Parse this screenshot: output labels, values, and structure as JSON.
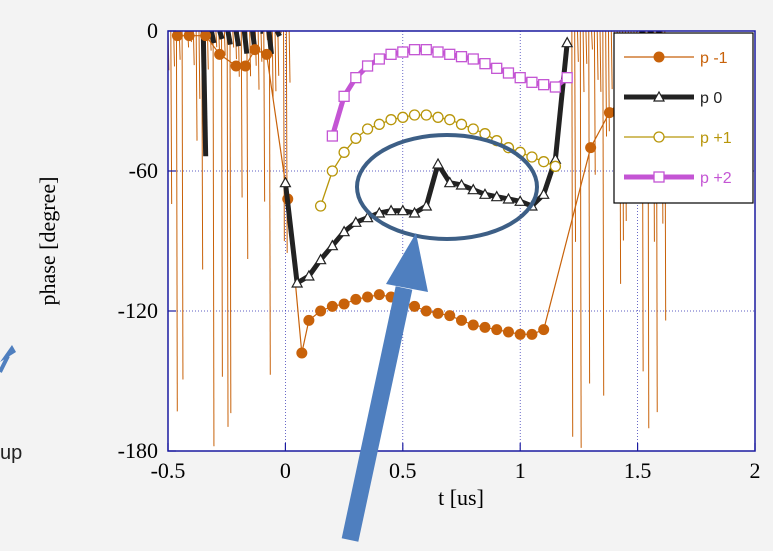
{
  "page": {
    "side_text": "up"
  },
  "chart_data": {
    "type": "line",
    "title": "",
    "xlabel": "t [us]",
    "ylabel": "phase [degree]",
    "xlim": [
      -0.5,
      2
    ],
    "ylim": [
      -180,
      0
    ],
    "xticks": [
      -0.5,
      0,
      0.5,
      1,
      1.5,
      2
    ],
    "xtick_labels": [
      "-0.5",
      "0",
      "0.5",
      "1",
      "1.5",
      "2"
    ],
    "yticks": [
      -180,
      -120,
      -60,
      0
    ],
    "ytick_labels": [
      "-180",
      "-120",
      "-60",
      "0"
    ],
    "grid": true,
    "legend_position": "top-right",
    "series": [
      {
        "name": "p  -1",
        "color": "#c8620a",
        "marker": "filled-circle",
        "x": [
          -0.46,
          -0.41,
          -0.34,
          -0.28,
          -0.21,
          -0.17,
          -0.13,
          -0.08,
          0.01,
          0.07,
          0.1,
          0.15,
          0.2,
          0.25,
          0.3,
          0.35,
          0.4,
          0.45,
          0.5,
          0.55,
          0.6,
          0.65,
          0.7,
          0.75,
          0.8,
          0.85,
          0.9,
          0.95,
          1.0,
          1.05,
          1.1,
          1.3,
          1.38,
          1.47,
          1.55,
          1.63
        ],
        "y": [
          -2,
          -2,
          -2,
          -10,
          -15,
          -15,
          -8,
          -10,
          -72,
          -138,
          -124,
          -120,
          -118,
          -117,
          -115,
          -114,
          -113,
          -114,
          -116,
          -118,
          -120,
          -121,
          -122,
          -124,
          -126,
          -127,
          -128,
          -129,
          -130,
          -130,
          -128,
          -50,
          -35,
          -25,
          -15,
          -10
        ]
      },
      {
        "name": "p  0",
        "color": "#222222",
        "marker": "open-triangle",
        "x": [
          0.0,
          0.05,
          0.1,
          0.15,
          0.2,
          0.25,
          0.3,
          0.35,
          0.4,
          0.45,
          0.5,
          0.55,
          0.6,
          0.65,
          0.7,
          0.75,
          0.8,
          0.85,
          0.9,
          0.95,
          1.0,
          1.05,
          1.1,
          1.15,
          1.2
        ],
        "y": [
          -65,
          -108,
          -105,
          -98,
          -92,
          -86,
          -82,
          -80,
          -78,
          -77,
          -77,
          -78,
          -75,
          -57,
          -65,
          -66,
          -68,
          -70,
          -71,
          -72,
          -73,
          -75,
          -70,
          -55,
          -5
        ]
      },
      {
        "name": "p  +1",
        "color": "#b8960a",
        "marker": "open-circle",
        "x": [
          0.15,
          0.2,
          0.25,
          0.3,
          0.35,
          0.4,
          0.45,
          0.5,
          0.55,
          0.6,
          0.65,
          0.7,
          0.75,
          0.8,
          0.85,
          0.9,
          0.95,
          1.0,
          1.05,
          1.1,
          1.15
        ],
        "y": [
          -75,
          -60,
          -52,
          -46,
          -42,
          -40,
          -38,
          -37,
          -36,
          -36,
          -37,
          -38,
          -40,
          -42,
          -44,
          -47,
          -50,
          -52,
          -54,
          -56,
          -58
        ]
      },
      {
        "name": "p  +2",
        "color": "#c455d4",
        "marker": "open-square",
        "x": [
          0.2,
          0.25,
          0.3,
          0.35,
          0.4,
          0.45,
          0.5,
          0.55,
          0.6,
          0.65,
          0.7,
          0.75,
          0.8,
          0.85,
          0.9,
          0.95,
          1.0,
          1.05,
          1.1,
          1.15,
          1.2
        ],
        "y": [
          -45,
          -28,
          -20,
          -15,
          -12,
          -10,
          -9,
          -8,
          -8,
          -9,
          -10,
          -11,
          -12,
          -14,
          -16,
          -18,
          -20,
          -22,
          -23,
          -24,
          -20
        ]
      }
    ]
  },
  "annotations": {
    "ellipse_color": "#3d5f86",
    "arrow_color": "#4f7fbf"
  }
}
